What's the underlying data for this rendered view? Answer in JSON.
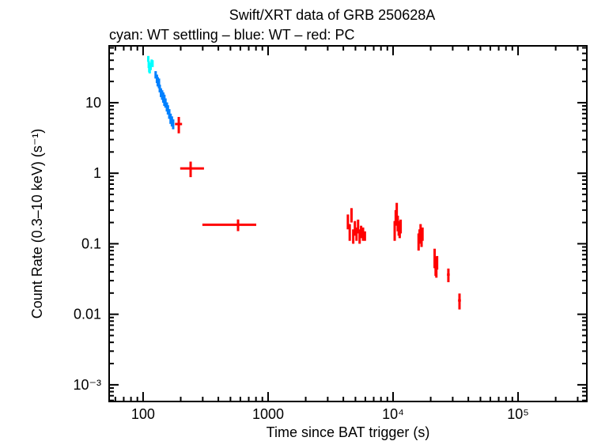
{
  "chart_data": {
    "type": "scatter",
    "title": "Swift/XRT data of GRB 250628A",
    "subtitle": "cyan: WT settling – blue: WT – red: PC",
    "xlabel": "Time since BAT trigger (s)",
    "ylabel": "Count Rate (0.3–10 keV) (s⁻¹)",
    "xscale": "log",
    "yscale": "log",
    "xlim": [
      53.5,
      355000
    ],
    "ylim": [
      0.00058,
      64
    ],
    "grid": false,
    "xticks": [
      {
        "v": 100,
        "label": "100"
      },
      {
        "v": 1000,
        "label": "1000"
      },
      {
        "v": 10000,
        "label": "10⁴"
      },
      {
        "v": 100000,
        "label": "10⁵"
      }
    ],
    "yticks": [
      {
        "v": 10,
        "label": "10"
      },
      {
        "v": 1,
        "label": "1"
      },
      {
        "v": 0.1,
        "label": "0.1"
      },
      {
        "v": 0.01,
        "label": "0.01"
      },
      {
        "v": 0.001,
        "label": "10⁻³"
      }
    ],
    "series": [
      {
        "name": "WT settling",
        "color": "#00ffff",
        "points": [
          [
            110,
            42,
            4,
            1,
            1
          ],
          [
            111,
            35,
            4,
            1,
            1
          ],
          [
            112,
            30,
            3,
            1,
            1
          ],
          [
            113,
            29,
            3,
            1,
            1
          ],
          [
            115,
            33,
            4,
            1,
            1
          ],
          [
            117,
            37,
            4,
            1,
            1
          ],
          [
            119,
            36,
            4,
            1,
            1
          ]
        ]
      },
      {
        "name": "WT",
        "color": "#0080ff",
        "points": [
          [
            126,
            25,
            3,
            1,
            2
          ],
          [
            129,
            22,
            3,
            1,
            2
          ],
          [
            131,
            20,
            3,
            1,
            2
          ],
          [
            134,
            19,
            3,
            1,
            2
          ],
          [
            136,
            16,
            2,
            1,
            2
          ],
          [
            139,
            14,
            2,
            1,
            2
          ],
          [
            142,
            13,
            2,
            1,
            2
          ],
          [
            145,
            12,
            2,
            1,
            2
          ],
          [
            148,
            11,
            2,
            1,
            2
          ],
          [
            151,
            10,
            1.5,
            1,
            2
          ],
          [
            155,
            8.8,
            1.3,
            1,
            2
          ],
          [
            158,
            8,
            1.2,
            1,
            2
          ],
          [
            162,
            7,
            1.1,
            1,
            2
          ],
          [
            166,
            6,
            1,
            1,
            2
          ],
          [
            170,
            5.5,
            0.9,
            1,
            2
          ],
          [
            174,
            5,
            0.8,
            1,
            2
          ]
        ]
      },
      {
        "name": "PC",
        "color": "#ff0000",
        "points": [
          [
            193,
            4.98,
            1.3,
            13,
            12
          ],
          [
            240,
            1.17,
            0.29,
            42,
            67
          ],
          [
            575,
            0.186,
            0.035,
            277,
            229
          ],
          [
            4350,
            0.21,
            0.05,
            80,
            80
          ],
          [
            4500,
            0.15,
            0.04,
            80,
            80
          ],
          [
            4650,
            0.26,
            0.06,
            80,
            80
          ],
          [
            4800,
            0.13,
            0.03,
            80,
            80
          ],
          [
            4950,
            0.17,
            0.04,
            80,
            80
          ],
          [
            5100,
            0.14,
            0.03,
            80,
            80
          ],
          [
            5250,
            0.18,
            0.04,
            80,
            80
          ],
          [
            5400,
            0.13,
            0.03,
            80,
            80
          ],
          [
            5550,
            0.15,
            0.03,
            80,
            80
          ],
          [
            5750,
            0.14,
            0.03,
            80,
            80
          ],
          [
            5950,
            0.13,
            0.02,
            90,
            90
          ],
          [
            10300,
            0.16,
            0.05,
            100,
            100
          ],
          [
            10500,
            0.24,
            0.06,
            100,
            100
          ],
          [
            10700,
            0.3,
            0.08,
            100,
            100
          ],
          [
            10900,
            0.2,
            0.05,
            100,
            100
          ],
          [
            11100,
            0.17,
            0.04,
            100,
            100
          ],
          [
            11300,
            0.16,
            0.04,
            100,
            100
          ],
          [
            11500,
            0.18,
            0.04,
            100,
            100
          ],
          [
            16000,
            0.11,
            0.03,
            150,
            150
          ],
          [
            16300,
            0.13,
            0.03,
            150,
            150
          ],
          [
            16600,
            0.15,
            0.04,
            150,
            150
          ],
          [
            16900,
            0.12,
            0.03,
            150,
            150
          ],
          [
            17200,
            0.14,
            0.03,
            150,
            150
          ],
          [
            21500,
            0.065,
            0.02,
            200,
            200
          ],
          [
            21900,
            0.05,
            0.015,
            200,
            200
          ],
          [
            22200,
            0.045,
            0.012,
            200,
            200
          ],
          [
            22500,
            0.055,
            0.012,
            250,
            250
          ],
          [
            27700,
            0.0365,
            0.008,
            700,
            700
          ],
          [
            34000,
            0.0157,
            0.004,
            900,
            900
          ]
        ]
      }
    ]
  }
}
